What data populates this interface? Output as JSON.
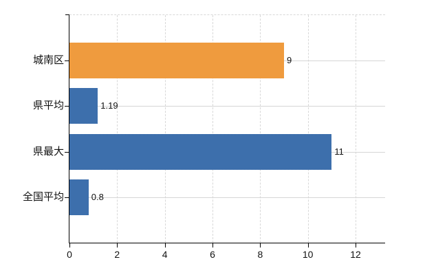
{
  "chart_data": {
    "type": "bar",
    "orientation": "horizontal",
    "title": "",
    "categories": [
      "城南区",
      "県平均",
      "県最大",
      "全国平均"
    ],
    "values": [
      9,
      1.19,
      11,
      0.8
    ],
    "value_labels": [
      "9",
      "1.19",
      "11",
      "0.8"
    ],
    "bar_avg_colors": [
      "#ee9a3f",
      "#3d6fa9",
      "#3d6fa9",
      "#3d6fa9"
    ],
    "bar_dither_colors": [
      [
        "#e8912f",
        "#f6a54d"
      ],
      [
        "#2f63a4",
        "#4b7bb4"
      ],
      [
        "#2f63a4",
        "#4b7bb4"
      ],
      [
        "#2f63a4",
        "#4b7bb4"
      ]
    ],
    "xtick_labels": [
      "0",
      "2",
      "4",
      "6",
      "8",
      "10",
      "12"
    ],
    "xtick_values": [
      0,
      2,
      4,
      6,
      8,
      10,
      12
    ],
    "xlim": [
      0,
      13.24
    ],
    "grid": true,
    "legend_position": "none",
    "xlabel": "",
    "ylabel": ""
  },
  "colors": {
    "background": "#ffffff",
    "axis": "#000000",
    "gridline_dashed": "#d8d8d8",
    "gridline_solid": "#d5d5d5",
    "text": "#111111",
    "highlight_bar": "#ee9a3f",
    "default_bar": "#3d6fa9"
  }
}
